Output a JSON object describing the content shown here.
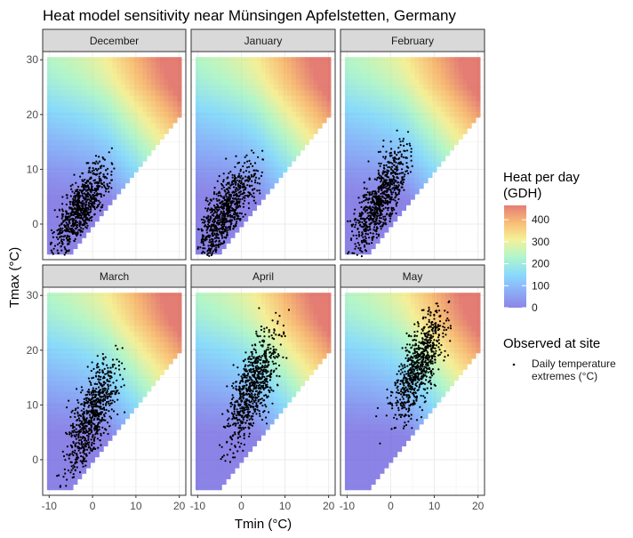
{
  "chart_data": {
    "type": "heatmap",
    "title": "Heat model sensitivity near Münsingen Apfelstetten, Germany",
    "xlabel": "Tmin (°C)",
    "ylabel": "Tmax (°C)",
    "xlim": [
      -11.5,
      21.5
    ],
    "ylim": [
      -6.5,
      31.5
    ],
    "x_ticks": [
      -10,
      0,
      10,
      20
    ],
    "y_ticks": [
      0,
      10,
      20,
      30
    ],
    "grid": true,
    "facet_layout": "2 rows x 3 columns",
    "heatmap": {
      "tmin_range": [
        -10,
        20
      ],
      "tmax_range": [
        -5,
        30
      ],
      "cell_size": 1,
      "validity": "Tmax >= Tmin"
    },
    "panels": [
      {
        "label": "December",
        "points": {
          "count": 750,
          "tmin_mean": -2.5,
          "tmin_sd": 3.2,
          "tmax_mean": 3.0,
          "tmax_sd": 4.0,
          "tmin_range": [
            -10,
            5
          ],
          "tmax_range": [
            -6,
            14
          ]
        }
      },
      {
        "label": "January",
        "points": {
          "count": 750,
          "tmin_mean": -3.5,
          "tmin_sd": 3.5,
          "tmax_mean": 2.0,
          "tmax_sd": 4.5,
          "tmin_range": [
            -10,
            5
          ],
          "tmax_range": [
            -6,
            15
          ]
        }
      },
      {
        "label": "February",
        "points": {
          "count": 750,
          "tmin_mean": -2.5,
          "tmin_sd": 3.5,
          "tmax_mean": 4.0,
          "tmax_sd": 5.0,
          "tmin_range": [
            -10,
            5
          ],
          "tmax_range": [
            -6,
            19
          ]
        }
      },
      {
        "label": "March",
        "points": {
          "count": 750,
          "tmin_mean": 0.0,
          "tmin_sd": 3.0,
          "tmax_mean": 8.0,
          "tmax_sd": 5.5,
          "tmin_range": [
            -11,
            8
          ],
          "tmax_range": [
            -5,
            21
          ]
        }
      },
      {
        "label": "April",
        "points": {
          "count": 750,
          "tmin_mean": 2.5,
          "tmin_sd": 3.2,
          "tmax_mean": 13.0,
          "tmax_sd": 5.5,
          "tmin_range": [
            -5,
            11
          ],
          "tmax_range": [
            -2,
            28
          ]
        }
      },
      {
        "label": "May",
        "points": {
          "count": 750,
          "tmin_mean": 6.5,
          "tmin_sd": 3.0,
          "tmax_mean": 17.5,
          "tmax_sd": 5.0,
          "tmin_range": [
            -4,
            15
          ],
          "tmax_range": [
            2,
            29
          ]
        }
      }
    ],
    "legend": {
      "position": "right",
      "colorbar": {
        "title_line1": "Heat per day",
        "title_line2": "(GDH)",
        "ticks": [
          "0",
          "100",
          "200",
          "300",
          "400"
        ],
        "tick_values": [
          0,
          100,
          200,
          300,
          400
        ],
        "range": [
          0,
          465
        ],
        "colors": [
          "#5c4fdc",
          "#5a8ff5",
          "#59ccf9",
          "#92f2b4",
          "#f1ea6c",
          "#f5a13c",
          "#d9473a"
        ],
        "opacity": 0.7
      },
      "points": {
        "title": "Observed at site",
        "label_line1": "Daily temperature",
        "label_line2": "extremes (°C)"
      }
    }
  }
}
